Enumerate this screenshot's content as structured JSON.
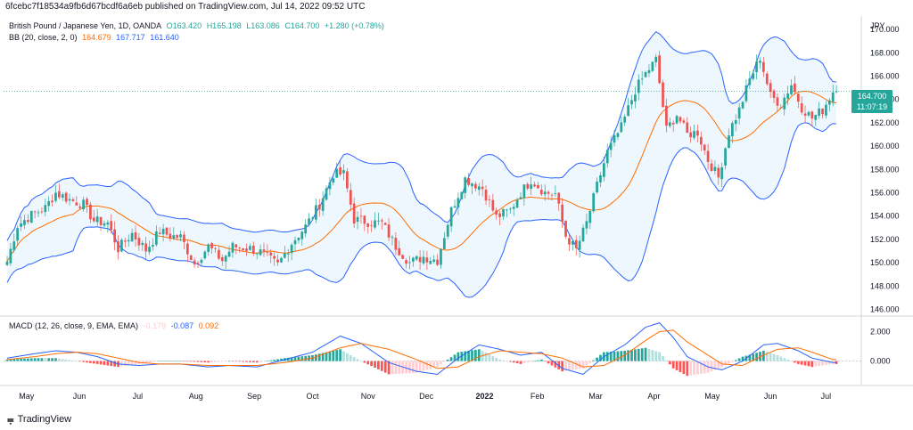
{
  "publisher_line": "6fcebc7f18534a9fb6d67bcdf6a6eb published on TradingView.com, Jul 14, 2022 09:52 UTC",
  "legend_main": {
    "symbol": "British Pound / Japanese Yen, 1D, OANDA",
    "open": "O163.420",
    "high": "H165.198",
    "low": "L163.086",
    "close": "C164.700",
    "change": "+1.280 (+0.78%)"
  },
  "legend_bb": {
    "label": "BB (20, close, 2, 0)",
    "basis": "164.679",
    "upper": "167.717",
    "lower": "161.640"
  },
  "legend_macd": {
    "label": "MACD (12, 26, close, 9, EMA, EMA)",
    "hist": "-0.179",
    "macd": "-0.087",
    "signal": "0.092"
  },
  "price_tag": {
    "price": "164.700",
    "countdown": "11:07:19"
  },
  "brand": "TradingView",
  "colors": {
    "up": "#26a69a",
    "down": "#ef5350",
    "bb_band": "#2962ff",
    "bb_basis": "#ff6d00",
    "bb_fill": "#e3f2fd",
    "macd_line": "#2962ff",
    "signal_line": "#ff6d00",
    "hist_up_strong": "#26a69a",
    "hist_up_weak": "#b2dfdb",
    "hist_down_strong": "#ff5252",
    "hist_down_weak": "#ffcdd2"
  },
  "chart_data": {
    "type": "candlestick",
    "symbol": "GBPJPY",
    "timeframe": "1D",
    "price_axis": {
      "unit": "JPY",
      "ylim": [
        145.5,
        171
      ],
      "ticks": [
        "170.000",
        "168.000",
        "166.000",
        "164.000",
        "162.000",
        "160.000",
        "158.000",
        "156.000",
        "154.000",
        "152.000",
        "150.000",
        "148.000",
        "146.000"
      ],
      "tick_values": [
        170,
        168,
        166,
        164,
        162,
        160,
        158,
        156,
        154,
        152,
        150,
        148,
        146
      ]
    },
    "macd_axis": {
      "ylim": [
        -1.6,
        3.0
      ],
      "ticks": [
        "2.000",
        "0.000"
      ],
      "tick_values": [
        2,
        0
      ]
    },
    "x_axis": {
      "labels": [
        "May",
        "Jun",
        "Jul",
        "Aug",
        "Sep",
        "Oct",
        "Nov",
        "Dec",
        "2022",
        "Feb",
        "Mar",
        "Apr",
        "May",
        "Jun",
        "Jul"
      ],
      "bold": [
        false,
        false,
        false,
        false,
        false,
        false,
        false,
        false,
        true,
        false,
        false,
        false,
        false,
        false,
        false
      ],
      "positions": [
        7,
        26,
        47,
        68,
        89,
        110,
        130,
        151,
        172,
        191,
        212,
        233,
        254,
        275,
        295
      ]
    },
    "close_path": [
      [
        0,
        150.1
      ],
      [
        3,
        153.2
      ],
      [
        7,
        154.1
      ],
      [
        11,
        154.7
      ],
      [
        14,
        156.0
      ],
      [
        18,
        155.4
      ],
      [
        22,
        155.0
      ],
      [
        25,
        153.6
      ],
      [
        29,
        153.4
      ],
      [
        32,
        151.2
      ],
      [
        36,
        152.5
      ],
      [
        40,
        151.1
      ],
      [
        44,
        152.7
      ],
      [
        47,
        152.3
      ],
      [
        50,
        152.2
      ],
      [
        54,
        149.9
      ],
      [
        58,
        151.4
      ],
      [
        62,
        150.2
      ],
      [
        65,
        151.4
      ],
      [
        70,
        151.2
      ],
      [
        73,
        150.9
      ],
      [
        78,
        149.8
      ],
      [
        82,
        151.7
      ],
      [
        86,
        153.1
      ],
      [
        90,
        155.0
      ],
      [
        94,
        157.6
      ],
      [
        97,
        157.6
      ],
      [
        100,
        153.7
      ],
      [
        104,
        153.5
      ],
      [
        108,
        153.4
      ],
      [
        112,
        151.4
      ],
      [
        116,
        150.0
      ],
      [
        120,
        150.5
      ],
      [
        124,
        150.2
      ],
      [
        128,
        154.5
      ],
      [
        132,
        157.2
      ],
      [
        137,
        156.4
      ],
      [
        141,
        153.9
      ],
      [
        145,
        154.5
      ],
      [
        148,
        156.0
      ],
      [
        151,
        157.1
      ],
      [
        155,
        156.0
      ],
      [
        158,
        155.9
      ],
      [
        161,
        152.3
      ],
      [
        164,
        151.1
      ],
      [
        167,
        153.4
      ],
      [
        170,
        156.6
      ],
      [
        173,
        159.5
      ],
      [
        177,
        161.6
      ],
      [
        181,
        164.8
      ],
      [
        184,
        166.2
      ],
      [
        187,
        167.4
      ],
      [
        190,
        161.4
      ],
      [
        193,
        162.7
      ],
      [
        196,
        161.0
      ],
      [
        199,
        161.2
      ],
      [
        202,
        158.8
      ],
      [
        205,
        157.3
      ],
      [
        208,
        161.2
      ],
      [
        211,
        163.1
      ],
      [
        214,
        165.7
      ],
      [
        217,
        167.6
      ],
      [
        220,
        164.3
      ],
      [
        223,
        163.6
      ],
      [
        226,
        165.3
      ],
      [
        229,
        163.3
      ],
      [
        232,
        162.4
      ],
      [
        235,
        163.1
      ],
      [
        238,
        164.7
      ]
    ],
    "macd_path": [
      [
        0,
        0.2
      ],
      [
        8,
        0.5
      ],
      [
        14,
        0.7
      ],
      [
        20,
        0.6
      ],
      [
        26,
        0.3
      ],
      [
        32,
        -0.2
      ],
      [
        38,
        -0.3
      ],
      [
        44,
        -0.2
      ],
      [
        50,
        -0.2
      ],
      [
        58,
        -0.4
      ],
      [
        64,
        -0.3
      ],
      [
        72,
        -0.4
      ],
      [
        80,
        0.1
      ],
      [
        88,
        0.6
      ],
      [
        96,
        1.7
      ],
      [
        102,
        1.2
      ],
      [
        110,
        -0.1
      ],
      [
        118,
        -0.7
      ],
      [
        124,
        -0.9
      ],
      [
        130,
        0.2
      ],
      [
        136,
        1.1
      ],
      [
        142,
        0.8
      ],
      [
        148,
        0.4
      ],
      [
        154,
        0.6
      ],
      [
        160,
        -0.5
      ],
      [
        166,
        -0.9
      ],
      [
        172,
        0.3
      ],
      [
        178,
        1.1
      ],
      [
        184,
        2.3
      ],
      [
        188,
        2.6
      ],
      [
        192,
        1.6
      ],
      [
        196,
        0.3
      ],
      [
        202,
        -0.4
      ],
      [
        206,
        -0.6
      ],
      [
        212,
        0.0
      ],
      [
        218,
        1.1
      ],
      [
        222,
        1.2
      ],
      [
        228,
        0.7
      ],
      [
        232,
        0.2
      ],
      [
        238,
        -0.1
      ]
    ],
    "signal_path": [
      [
        0,
        0.1
      ],
      [
        8,
        0.3
      ],
      [
        14,
        0.5
      ],
      [
        20,
        0.6
      ],
      [
        26,
        0.5
      ],
      [
        32,
        0.2
      ],
      [
        38,
        -0.1
      ],
      [
        44,
        -0.2
      ],
      [
        50,
        -0.2
      ],
      [
        58,
        -0.3
      ],
      [
        64,
        -0.3
      ],
      [
        72,
        -0.3
      ],
      [
        80,
        -0.1
      ],
      [
        88,
        0.2
      ],
      [
        96,
        0.9
      ],
      [
        102,
        1.2
      ],
      [
        110,
        0.8
      ],
      [
        118,
        0.1
      ],
      [
        124,
        -0.5
      ],
      [
        130,
        -0.4
      ],
      [
        136,
        0.3
      ],
      [
        142,
        0.7
      ],
      [
        148,
        0.6
      ],
      [
        154,
        0.5
      ],
      [
        160,
        0.2
      ],
      [
        166,
        -0.4
      ],
      [
        172,
        -0.3
      ],
      [
        178,
        0.4
      ],
      [
        184,
        1.4
      ],
      [
        188,
        2.0
      ],
      [
        192,
        2.1
      ],
      [
        196,
        1.3
      ],
      [
        202,
        0.4
      ],
      [
        206,
        -0.2
      ],
      [
        212,
        -0.3
      ],
      [
        218,
        0.4
      ],
      [
        222,
        0.8
      ],
      [
        228,
        0.9
      ],
      [
        232,
        0.6
      ],
      [
        238,
        0.1
      ]
    ],
    "last_price": 164.7
  }
}
